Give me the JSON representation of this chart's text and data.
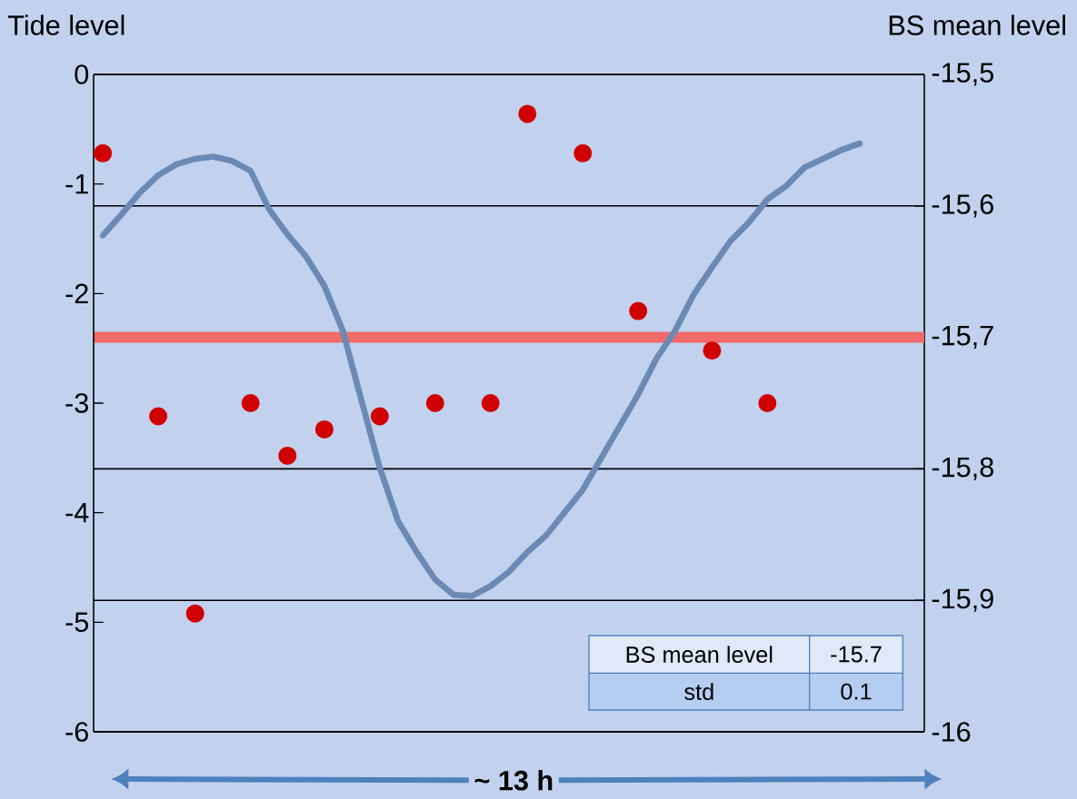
{
  "chart_data": {
    "type": "line",
    "ylabel": "Tide level",
    "y2label": "BS mean level",
    "xlabel": "~ 13 h",
    "categories": [
      null,
      null,
      null,
      null,
      null,
      null,
      null,
      null,
      null,
      null,
      null,
      null,
      null,
      null,
      null,
      null,
      null,
      null,
      null,
      null,
      null,
      null,
      null,
      null,
      null,
      null,
      null,
      null,
      null,
      null,
      null,
      null,
      null,
      null,
      null,
      null,
      null,
      null,
      null,
      null,
      null,
      null,
      null,
      null,
      null
    ],
    "series": [
      {
        "type": "line",
        "color": "#6a8ab5",
        "values": [
          -1.47,
          -1.28,
          -1.08,
          -0.92,
          -0.82,
          -0.77,
          -0.75,
          -0.79,
          -0.88,
          -1.23,
          -1.46,
          -1.66,
          -1.93,
          -2.34,
          -2.97,
          -3.59,
          -4.08,
          -4.36,
          -4.61,
          -4.75,
          -4.76,
          -4.67,
          -4.54,
          -4.36,
          -4.21,
          -4.0,
          -3.79,
          -3.5,
          -3.21,
          -2.92,
          -2.59,
          -2.34,
          -2.01,
          -1.76,
          -1.52,
          -1.35,
          -1.14,
          -1.02,
          -0.85,
          -0.77,
          -0.69,
          -0.63,
          null,
          null,
          null
        ]
      },
      {
        "type": "scatter",
        "axis": "y2",
        "color": "#d00000",
        "marker": "circle",
        "values": [
          -15.56,
          null,
          null,
          -15.76,
          null,
          -15.91,
          null,
          null,
          -15.75,
          null,
          -15.79,
          null,
          -15.77,
          null,
          null,
          -15.76,
          null,
          null,
          -15.75,
          null,
          null,
          -15.75,
          null,
          -15.53,
          null,
          null,
          -15.56,
          null,
          null,
          -15.68,
          null,
          null,
          null,
          -15.71,
          null,
          null,
          -15.75,
          null,
          null,
          null,
          null,
          null,
          null,
          null,
          null
        ]
      }
    ],
    "ylim": [
      -6,
      0
    ],
    "yticks": [
      -6,
      -5,
      -4,
      -3,
      -2,
      -1,
      0
    ],
    "y2lim": [
      -16,
      -15.5
    ],
    "y2ticks": [
      {
        "value": -16,
        "label": "-16"
      },
      {
        "value": -15.9,
        "label": "-15,9"
      },
      {
        "value": -15.8,
        "label": "-15,8"
      },
      {
        "value": -15.7,
        "label": "-15,7"
      },
      {
        "value": -15.6,
        "label": "-15,6"
      },
      {
        "value": -15.5,
        "label": "-15,5"
      }
    ],
    "grid": "y2",
    "ref_lines": [
      {
        "axis": "y2",
        "value": -15.7,
        "color": "#f06a6a"
      }
    ],
    "annotations": [
      "BS mean level",
      "-15.7",
      "std",
      "0.1"
    ]
  }
}
